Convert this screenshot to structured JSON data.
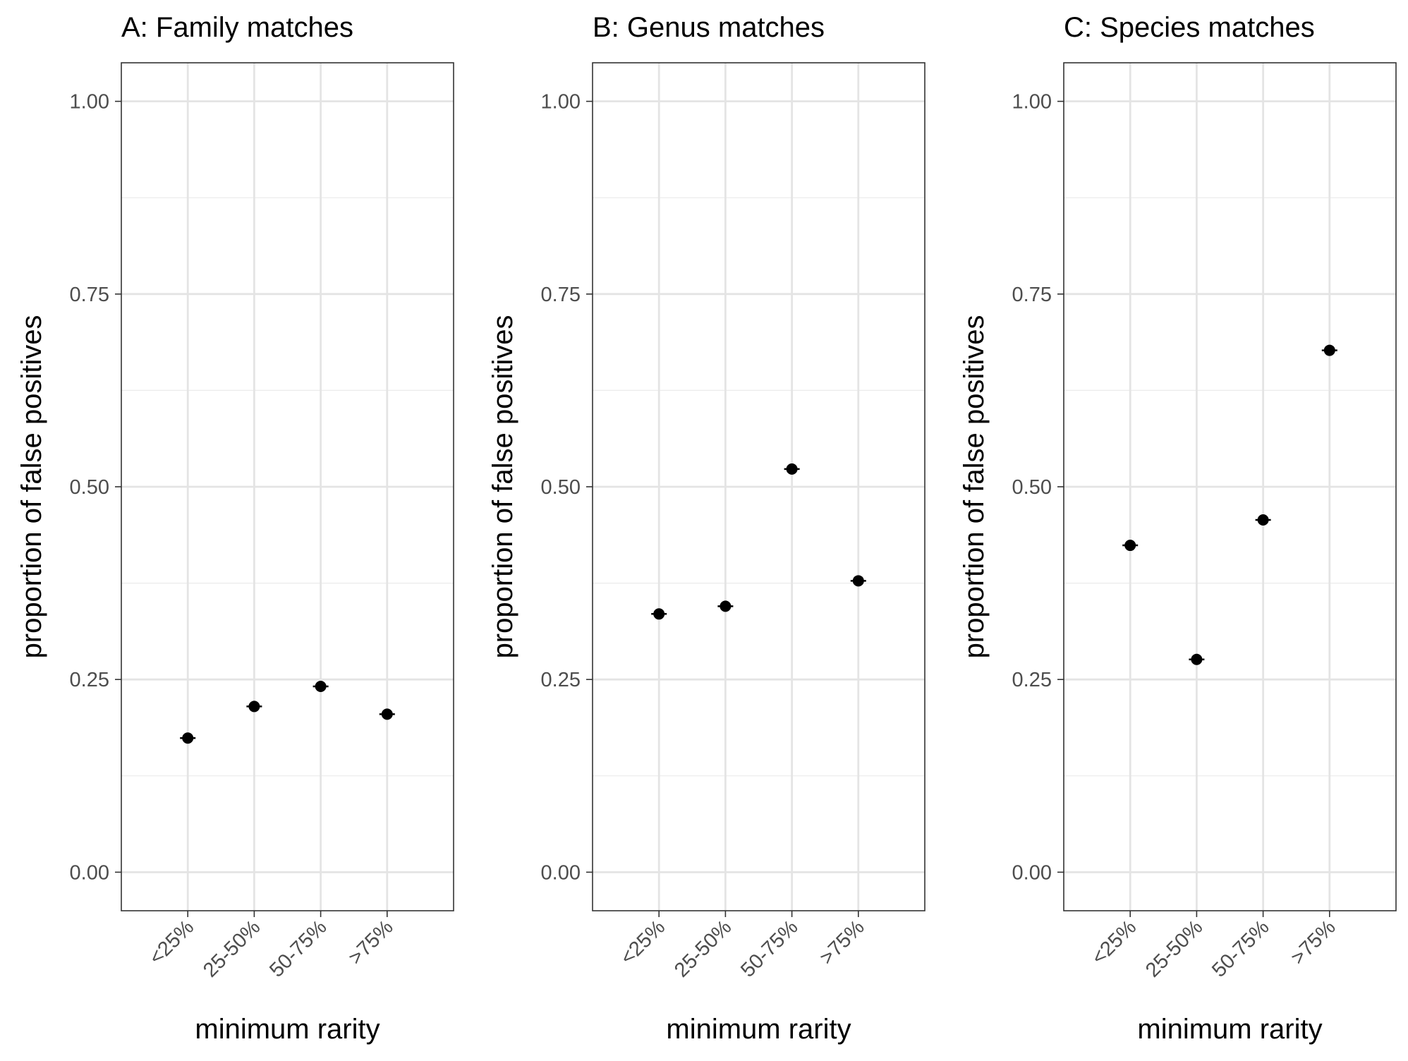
{
  "chart_data": [
    {
      "type": "scatter",
      "title": "A: Family matches",
      "xlabel": "minimum rarity",
      "ylabel": "proportion of false positives",
      "categories": [
        "<25%",
        "25-50%",
        "50-75%",
        ">75%"
      ],
      "values": [
        0.174,
        0.215,
        0.241,
        0.205
      ],
      "ylim": [
        -0.05,
        1.05
      ],
      "yticks": [
        "0.00",
        "0.25",
        "0.50",
        "0.75",
        "1.00"
      ],
      "grid": true
    },
    {
      "type": "scatter",
      "title": "B: Genus matches",
      "xlabel": "minimum rarity",
      "ylabel": "proportion of false positives",
      "categories": [
        "<25%",
        "25-50%",
        "50-75%",
        ">75%"
      ],
      "values": [
        0.335,
        0.345,
        0.523,
        0.378
      ],
      "ylim": [
        -0.05,
        1.05
      ],
      "yticks": [
        "0.00",
        "0.25",
        "0.50",
        "0.75",
        "1.00"
      ],
      "grid": true
    },
    {
      "type": "scatter",
      "title": "C: Species matches",
      "xlabel": "minimum rarity",
      "ylabel": "proportion of false positives",
      "categories": [
        "<25%",
        "25-50%",
        "50-75%",
        ">75%"
      ],
      "values": [
        0.424,
        0.276,
        0.457,
        0.677
      ],
      "ylim": [
        -0.05,
        1.05
      ],
      "yticks": [
        "0.00",
        "0.25",
        "0.50",
        "0.75",
        "1.00"
      ],
      "grid": true
    }
  ]
}
